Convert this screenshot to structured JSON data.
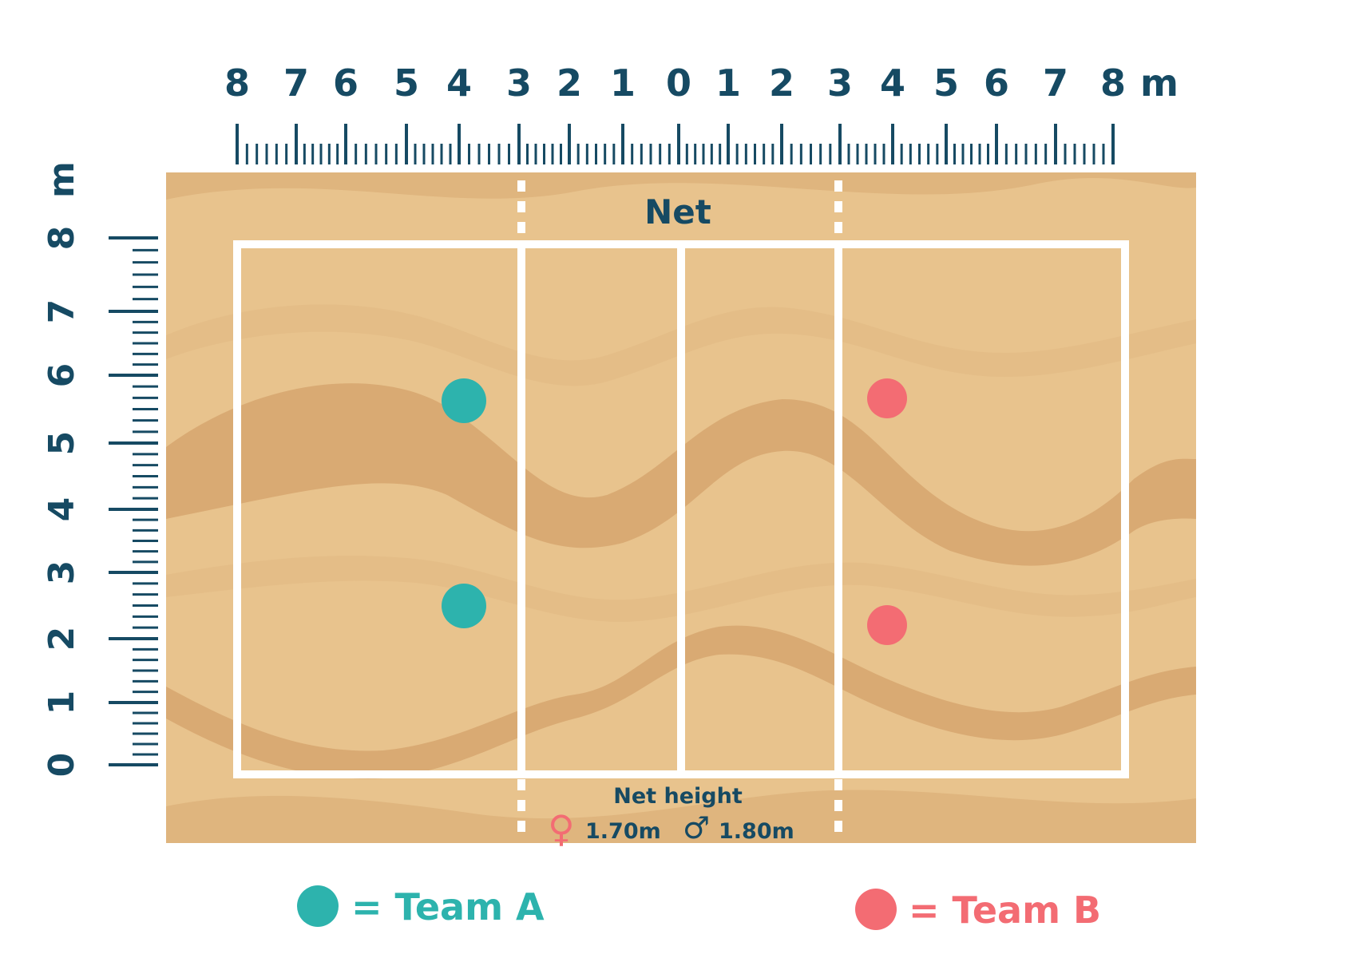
{
  "top_ruler": {
    "labels": [
      "8",
      "7",
      "6",
      "5",
      "4",
      "3",
      "2",
      "1",
      "0",
      "1",
      "2",
      "3",
      "4",
      "5",
      "6",
      "7",
      "8"
    ],
    "unit": "m"
  },
  "side_ruler": {
    "labels": [
      "0",
      "1",
      "2",
      "3",
      "4",
      "5",
      "6",
      "7",
      "8"
    ],
    "unit": "m"
  },
  "court": {
    "net_label": "Net",
    "net_height_title": "Net height",
    "female_height": "1.70m",
    "male_height": "1.80m",
    "female_symbol": "♀",
    "male_symbol": "♂"
  },
  "legend": {
    "team_a": "= Team A",
    "team_b": "= Team B"
  },
  "colors": {
    "team_a": "#2db3ad",
    "team_b": "#f36c73",
    "ruler": "#164a63",
    "sand_light": "#e8c38d",
    "sand_dark": "#d9aa73",
    "lines": "#ffffff"
  }
}
